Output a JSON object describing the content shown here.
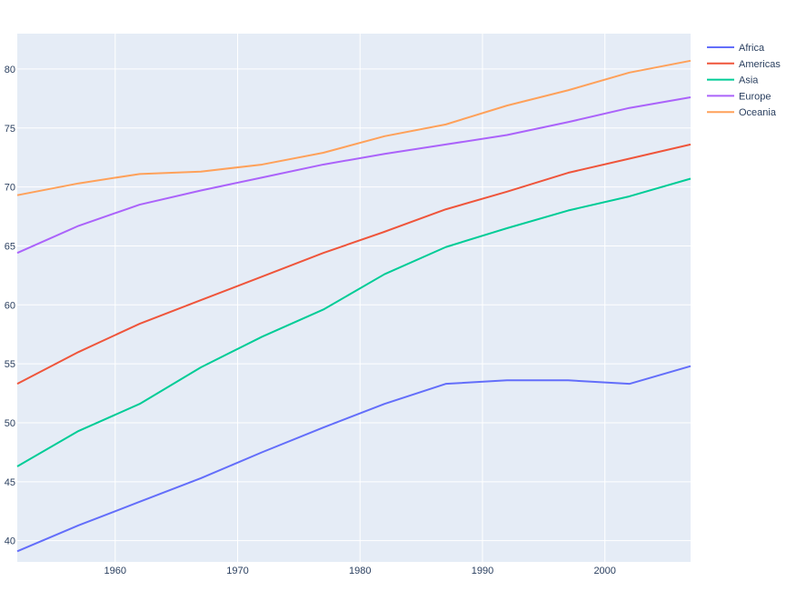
{
  "chart_data": {
    "type": "line",
    "title": "",
    "xlabel": "",
    "ylabel": "",
    "x": [
      1952,
      1957,
      1962,
      1967,
      1972,
      1977,
      1982,
      1987,
      1992,
      1997,
      2002,
      2007
    ],
    "xlim": [
      1952,
      2007
    ],
    "ylim": [
      38.2,
      83
    ],
    "x_ticks": [
      1960,
      1970,
      1980,
      1990,
      2000
    ],
    "y_ticks": [
      40,
      45,
      50,
      55,
      60,
      65,
      70,
      75,
      80
    ],
    "grid": true,
    "legend_position": "top-right",
    "plot_background": "#e5ecf6",
    "series": [
      {
        "name": "Africa",
        "color": "#636efa",
        "values": [
          39.1,
          41.3,
          43.3,
          45.3,
          47.5,
          49.6,
          51.6,
          53.3,
          53.6,
          53.6,
          53.3,
          54.8
        ]
      },
      {
        "name": "Americas",
        "color": "#ef553b",
        "values": [
          53.3,
          56.0,
          58.4,
          60.4,
          62.4,
          64.4,
          66.2,
          68.1,
          69.6,
          71.2,
          72.4,
          73.6
        ]
      },
      {
        "name": "Asia",
        "color": "#00cc96",
        "values": [
          46.3,
          49.3,
          51.6,
          54.7,
          57.3,
          59.6,
          62.6,
          64.9,
          66.5,
          68.0,
          69.2,
          70.7
        ]
      },
      {
        "name": "Europe",
        "color": "#ab63fa",
        "values": [
          64.4,
          66.7,
          68.5,
          69.7,
          70.8,
          71.9,
          72.8,
          73.6,
          74.4,
          75.5,
          76.7,
          77.6
        ]
      },
      {
        "name": "Oceania",
        "color": "#ffa15a",
        "values": [
          69.3,
          70.3,
          71.1,
          71.3,
          71.9,
          72.9,
          74.3,
          75.3,
          76.9,
          78.2,
          79.7,
          80.7
        ]
      }
    ]
  }
}
